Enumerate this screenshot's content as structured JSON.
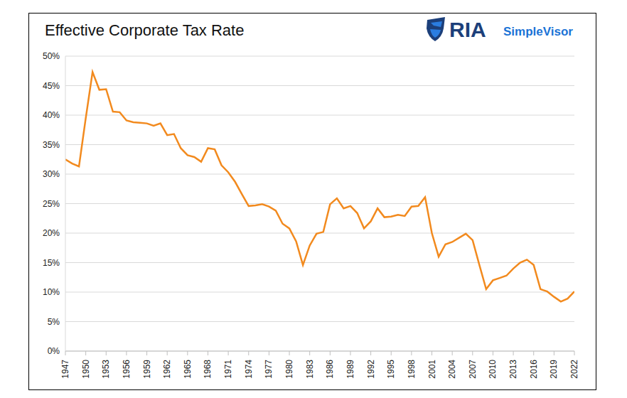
{
  "chart_data": {
    "type": "line",
    "title": "Effective Corporate Tax Rate",
    "annotations": [
      "RIA",
      "SimpleVisor"
    ],
    "x": [
      1947,
      1948,
      1949,
      1950,
      1951,
      1952,
      1953,
      1954,
      1955,
      1956,
      1957,
      1958,
      1959,
      1960,
      1961,
      1962,
      1963,
      1964,
      1965,
      1966,
      1967,
      1968,
      1969,
      1970,
      1971,
      1972,
      1973,
      1974,
      1975,
      1976,
      1977,
      1978,
      1979,
      1980,
      1981,
      1982,
      1983,
      1984,
      1985,
      1986,
      1987,
      1988,
      1989,
      1990,
      1991,
      1992,
      1993,
      1994,
      1995,
      1996,
      1997,
      1998,
      1999,
      2000,
      2001,
      2002,
      2003,
      2004,
      2005,
      2006,
      2007,
      2008,
      2009,
      2010,
      2011,
      2012,
      2013,
      2014,
      2015,
      2016,
      2017,
      2018,
      2019,
      2020,
      2021,
      2022
    ],
    "values": [
      32.5,
      31.8,
      31.3,
      39.5,
      47.3,
      44.3,
      44.4,
      40.6,
      40.5,
      39.1,
      38.8,
      38.7,
      38.6,
      38.2,
      38.6,
      36.6,
      36.8,
      34.4,
      33.2,
      32.9,
      32.1,
      34.4,
      34.2,
      31.5,
      30.3,
      28.7,
      26.6,
      24.6,
      24.7,
      24.9,
      24.5,
      23.8,
      21.6,
      20.8,
      18.6,
      14.6,
      17.9,
      19.9,
      20.2,
      24.9,
      25.9,
      24.2,
      24.6,
      23.4,
      20.8,
      22.0,
      24.2,
      22.7,
      22.8,
      23.1,
      22.9,
      24.5,
      24.6,
      26.1,
      20.0,
      16.0,
      18.1,
      18.5,
      19.2,
      19.9,
      18.8,
      14.6,
      10.5,
      12.0,
      12.4,
      12.8,
      14.0,
      15.0,
      15.5,
      14.6,
      10.5,
      10.1,
      9.2,
      8.4,
      8.9,
      10.1
    ],
    "color": "#f28a1e",
    "xlim": [
      1947,
      2022
    ],
    "xticks": [
      1947,
      1950,
      1953,
      1956,
      1959,
      1962,
      1965,
      1968,
      1971,
      1974,
      1977,
      1980,
      1983,
      1986,
      1989,
      1992,
      1995,
      1998,
      2001,
      2004,
      2007,
      2010,
      2013,
      2016,
      2019,
      2022
    ],
    "ylim": [
      0,
      50
    ],
    "yticks": [
      {
        "value": 0,
        "label": "0%"
      },
      {
        "value": 5,
        "label": "5%"
      },
      {
        "value": 10,
        "label": "10%"
      },
      {
        "value": 15,
        "label": "15%"
      },
      {
        "value": 20,
        "label": "20%"
      },
      {
        "value": 25,
        "label": "25%"
      },
      {
        "value": 30,
        "label": "30%"
      },
      {
        "value": 35,
        "label": "35%"
      },
      {
        "value": 40,
        "label": "40%"
      },
      {
        "value": 45,
        "label": "45%"
      },
      {
        "value": 50,
        "label": "50%"
      }
    ],
    "grid": true
  }
}
